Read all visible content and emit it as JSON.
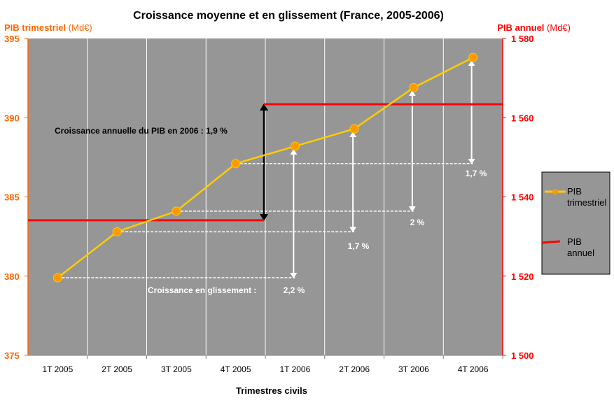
{
  "chart_data": {
    "type": "line",
    "title": "Croissance moyenne et en glissement (France, 2005-2006)",
    "xlabel": "Trimestres civils",
    "ylabel_left": {
      "main": "PIB trimestriel",
      "unit": "(Md€)"
    },
    "ylabel_right": {
      "main": "PIB annuel",
      "unit": "(Md€)"
    },
    "categories": [
      "1T 2005",
      "2T 2005",
      "3T 2005",
      "4T 2005",
      "1T 2006",
      "2T 2006",
      "3T 2006",
      "4T 2006"
    ],
    "ylim_left": [
      375,
      395
    ],
    "yticks_left": [
      "375",
      "380",
      "385",
      "390",
      "395"
    ],
    "ylim_right": [
      1500,
      1580
    ],
    "yticks_right": [
      "1 500",
      "1 520",
      "1 540",
      "1 560",
      "1 580"
    ],
    "grid": "vertical",
    "legend_placement": "right",
    "series": [
      {
        "name": "PIB trimestriel",
        "axis": "left",
        "color": "#FFCC00",
        "marker_color": "#FF9900",
        "values": [
          379.9,
          382.8,
          384.1,
          387.1,
          388.2,
          389.3,
          391.9,
          393.8
        ]
      },
      {
        "name": "PIB annuel",
        "axis": "right",
        "color": "#FF0000",
        "type": "step",
        "periods": [
          {
            "label": "2005",
            "value": 1534.1
          },
          {
            "label": "2006",
            "value": 1563.4
          }
        ]
      }
    ],
    "annotations": {
      "annual": "Croissance annuelle du PIB en 2006 : 1,9 %",
      "yoy_prefix": "Croissance en glissement :",
      "yoy": [
        "2,2 %",
        "1,7 %",
        "2 %",
        "1,7 %"
      ]
    },
    "colors": {
      "plot_bg": "#969696",
      "left_axis": "#FF6600",
      "right_axis": "#FF0000"
    }
  }
}
